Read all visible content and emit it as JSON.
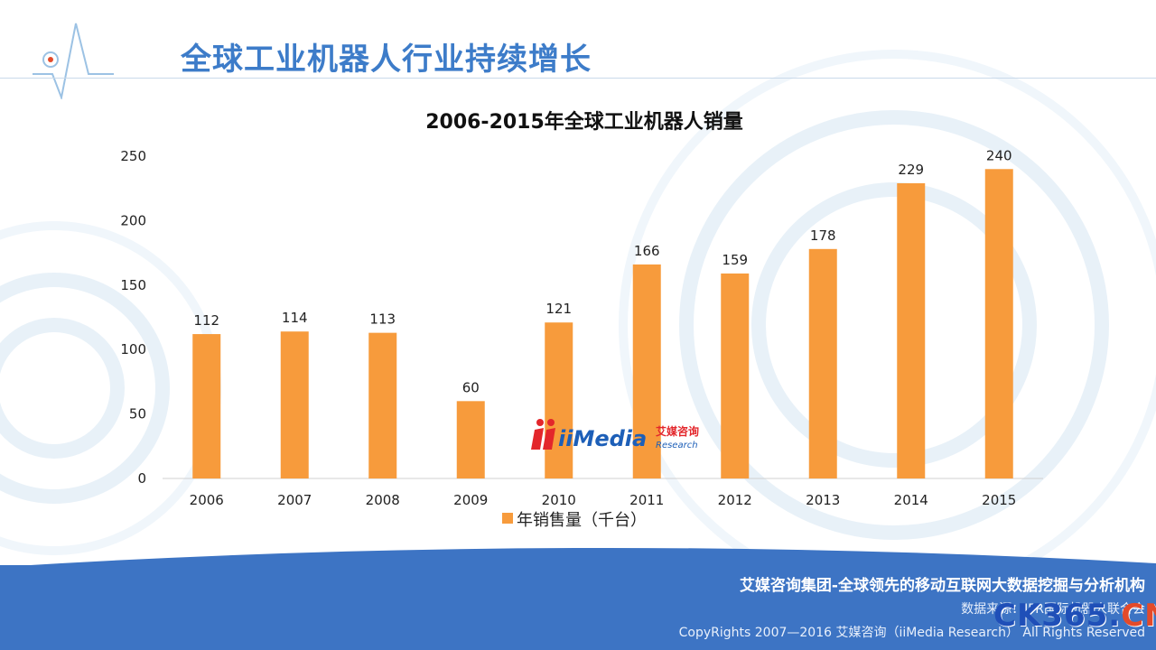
{
  "slide": {
    "title": "全球工业机器人行业持续增长"
  },
  "chart_data": {
    "type": "bar",
    "title": "2006-2015年全球工业机器人销量",
    "categories": [
      "2006",
      "2007",
      "2008",
      "2009",
      "2010",
      "2011",
      "2012",
      "2013",
      "2014",
      "2015"
    ],
    "series": [
      {
        "name": "年销售量（千台）",
        "values": [
          112,
          114,
          113,
          60,
          121,
          166,
          159,
          178,
          229,
          240
        ],
        "color": "#f79b3c"
      }
    ],
    "yticks": [
      "0",
      "50",
      "100",
      "150",
      "200",
      "250"
    ],
    "ylim": [
      0,
      250
    ],
    "grid": false,
    "legend": "bottom"
  },
  "watermark": {
    "brand": "iiMedia",
    "brand_cn": "艾媒咨询",
    "brand_sub": "Research",
    "site_main": "CK365.",
    "site_cn": "CN"
  },
  "footer": {
    "tagline": "艾媒咨询集团-全球领先的移动互联网大数据挖掘与分析机构",
    "source": "数据来源：IFR国际机器人联合会",
    "copyright": "CopyRights  2007—2016  艾媒咨询（iiMedia Research）  All Rights Reserved"
  },
  "colors": {
    "title_blue": "#3d7cc9",
    "footer_blue": "#3d74c4",
    "bar_orange": "#f79b3c"
  }
}
